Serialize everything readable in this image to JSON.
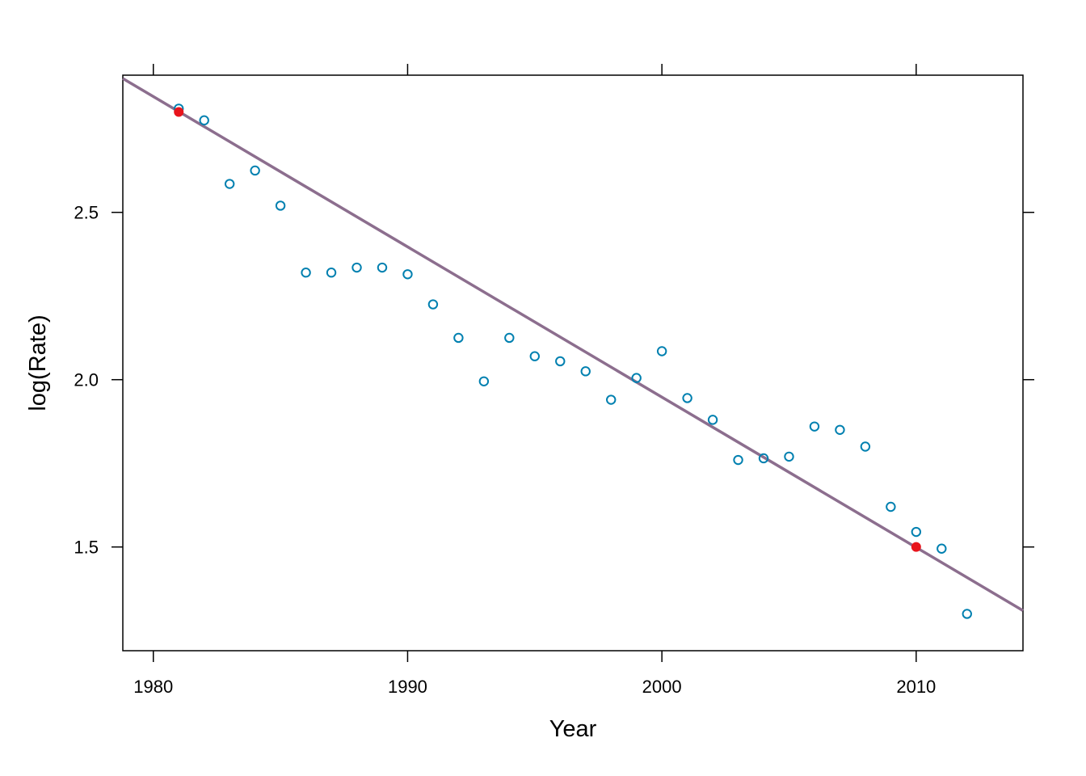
{
  "chart_data": {
    "type": "scatter",
    "title": "",
    "xlabel": "Year",
    "ylabel": "log(Rate)",
    "xlim": [
      1978.8,
      2014.2
    ],
    "ylim": [
      1.19,
      2.91
    ],
    "x_ticks": [
      1980,
      1990,
      2000,
      2010
    ],
    "x_tick_labels": [
      "1980",
      "1990",
      "2000",
      "2010"
    ],
    "y_ticks": [
      1.5,
      2.0,
      2.5
    ],
    "y_tick_labels": [
      "1.5",
      "2.0",
      "2.5"
    ],
    "grid": false,
    "legend": "none",
    "series": [
      {
        "kind": "points",
        "marker": "open-circle",
        "color": "#0080b0",
        "x": [
          1981,
          1982,
          1983,
          1984,
          1985,
          1986,
          1987,
          1988,
          1989,
          1990,
          1991,
          1992,
          1993,
          1994,
          1995,
          1996,
          1997,
          1998,
          1999,
          2000,
          2001,
          2002,
          2003,
          2004,
          2005,
          2006,
          2007,
          2008,
          2009,
          2010,
          2011,
          2012
        ],
        "y": [
          2.81,
          2.775,
          2.585,
          2.625,
          2.52,
          2.32,
          2.32,
          2.335,
          2.335,
          2.315,
          2.225,
          2.125,
          1.995,
          2.125,
          2.07,
          2.055,
          2.025,
          1.94,
          2.005,
          2.085,
          1.945,
          1.88,
          1.76,
          1.765,
          1.77,
          1.86,
          1.85,
          1.8,
          1.62,
          1.545,
          1.495,
          1.3
        ]
      },
      {
        "kind": "highlight",
        "marker": "filled-circle",
        "color": "#e8141c",
        "x": [
          1981,
          2010
        ],
        "y": [
          2.8,
          1.5
        ]
      },
      {
        "kind": "fit-line",
        "color": "#8c6e8e",
        "x": [
          1978.8,
          2014.2
        ],
        "y": [
          2.9,
          1.31
        ]
      }
    ],
    "colors": {
      "axis": "#000000",
      "points": "#0080b0",
      "highlight": "#e8141c",
      "line": "#8c6e8e"
    }
  }
}
